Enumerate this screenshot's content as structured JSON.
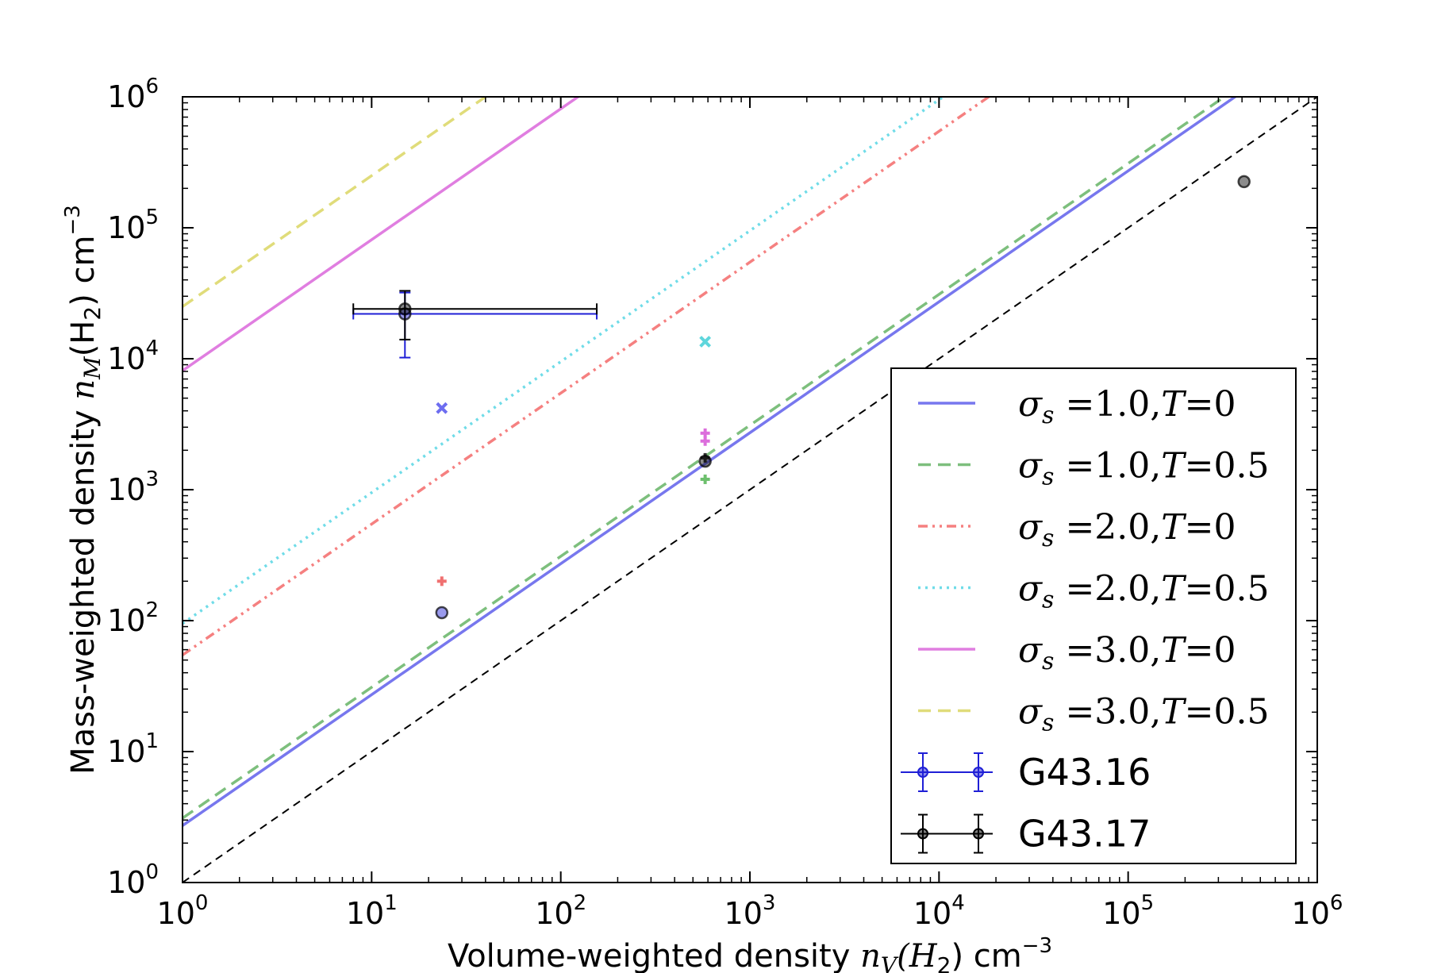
{
  "chart_data": {
    "type": "scatter",
    "xscale": "log",
    "yscale": "log",
    "xlim": [
      1,
      1000000
    ],
    "ylim": [
      1,
      1000000
    ],
    "xticks": [
      {
        "base": "10",
        "exp": "0"
      },
      {
        "base": "10",
        "exp": "1"
      },
      {
        "base": "10",
        "exp": "2"
      },
      {
        "base": "10",
        "exp": "3"
      },
      {
        "base": "10",
        "exp": "4"
      },
      {
        "base": "10",
        "exp": "5"
      },
      {
        "base": "10",
        "exp": "6"
      }
    ],
    "yticks": [
      {
        "base": "10",
        "exp": "0"
      },
      {
        "base": "10",
        "exp": "1"
      },
      {
        "base": "10",
        "exp": "2"
      },
      {
        "base": "10",
        "exp": "3"
      },
      {
        "base": "10",
        "exp": "4"
      },
      {
        "base": "10",
        "exp": "5"
      },
      {
        "base": "10",
        "exp": "6"
      }
    ],
    "xlabel": {
      "prefix": "Volume-weighted density ",
      "math": "n",
      "sub": "V",
      "paren": "(H",
      "sub2": "2",
      "close": ")",
      "unit": " cm",
      "unit_exp": "−3"
    },
    "ylabel": {
      "prefix": "Mass-weighted density ",
      "math": "n",
      "sub": "M",
      "paren": "(H",
      "sub2": "2",
      "close": ")",
      "unit": " cm",
      "unit_exp": "−3"
    },
    "legend_position": "lower-right",
    "reference_line": {
      "description_hidden": true,
      "x": [
        1,
        1000000
      ],
      "y": [
        1,
        1000000
      ],
      "color": "#000000",
      "dash": "dashed"
    },
    "model_lines": [
      {
        "name": "σs =1.0,T=0",
        "sigma": "1.0",
        "T": "0",
        "coef": 2.72,
        "color": "#7777ee",
        "dash": "solid"
      },
      {
        "name": "σs =1.0,T=0.5",
        "sigma": "1.0",
        "T": "0.5",
        "coef": 3.1,
        "color": "#7dbf7d",
        "dash": "dashed"
      },
      {
        "name": "σs =2.0,T=0",
        "sigma": "2.0",
        "T": "0",
        "coef": 54.6,
        "color": "#f58080",
        "dash": "dashdotdot"
      },
      {
        "name": "σs =2.0,T=0.5",
        "sigma": "2.0",
        "T": "0.5",
        "coef": 95,
        "color": "#70dce8",
        "dash": "dotted"
      },
      {
        "name": "σs =3.0,T=0",
        "sigma": "3.0",
        "T": "0",
        "coef": 8103,
        "color": "#e07ee0",
        "dash": "solid"
      },
      {
        "name": "σs =3.0,T=0.5",
        "sigma": "3.0",
        "T": "0.5",
        "coef": 25000,
        "color": "#e0dc7a",
        "dash": "dashed"
      }
    ],
    "series": [
      {
        "name": "G43.16",
        "color": "#1f1fd6",
        "points": [
          {
            "x": 15,
            "y": 22000,
            "xerr": [
              8,
              155
            ],
            "yerr": [
              10200,
              32000
            ]
          },
          {
            "x": 23.5,
            "y": 115
          }
        ]
      },
      {
        "name": "G43.17",
        "color": "#000000",
        "points": [
          {
            "x": 15,
            "y": 24000,
            "xerr": [
              8,
              155
            ],
            "yerr": [
              14000,
              33000
            ]
          },
          {
            "x": 580,
            "y": 1650
          },
          {
            "x": 410000,
            "y": 225000
          }
        ]
      }
    ],
    "markers": [
      {
        "symbol": "x",
        "x": 23.5,
        "y": 4200,
        "color": "#6d6df0"
      },
      {
        "symbol": "+",
        "x": 23.5,
        "y": 200,
        "color": "#f07070"
      },
      {
        "symbol": "x",
        "x": 580,
        "y": 13500,
        "color": "#5ed6dc"
      },
      {
        "symbol": "+",
        "x": 580,
        "y": 2700,
        "color": "#dc6edc"
      },
      {
        "symbol": "+",
        "x": 580,
        "y": 2350,
        "color": "#dc6edc"
      },
      {
        "symbol": "+",
        "x": 580,
        "y": 1750,
        "color": "#303030"
      },
      {
        "symbol": "+",
        "x": 580,
        "y": 1200,
        "color": "#6dbf6d"
      }
    ]
  }
}
